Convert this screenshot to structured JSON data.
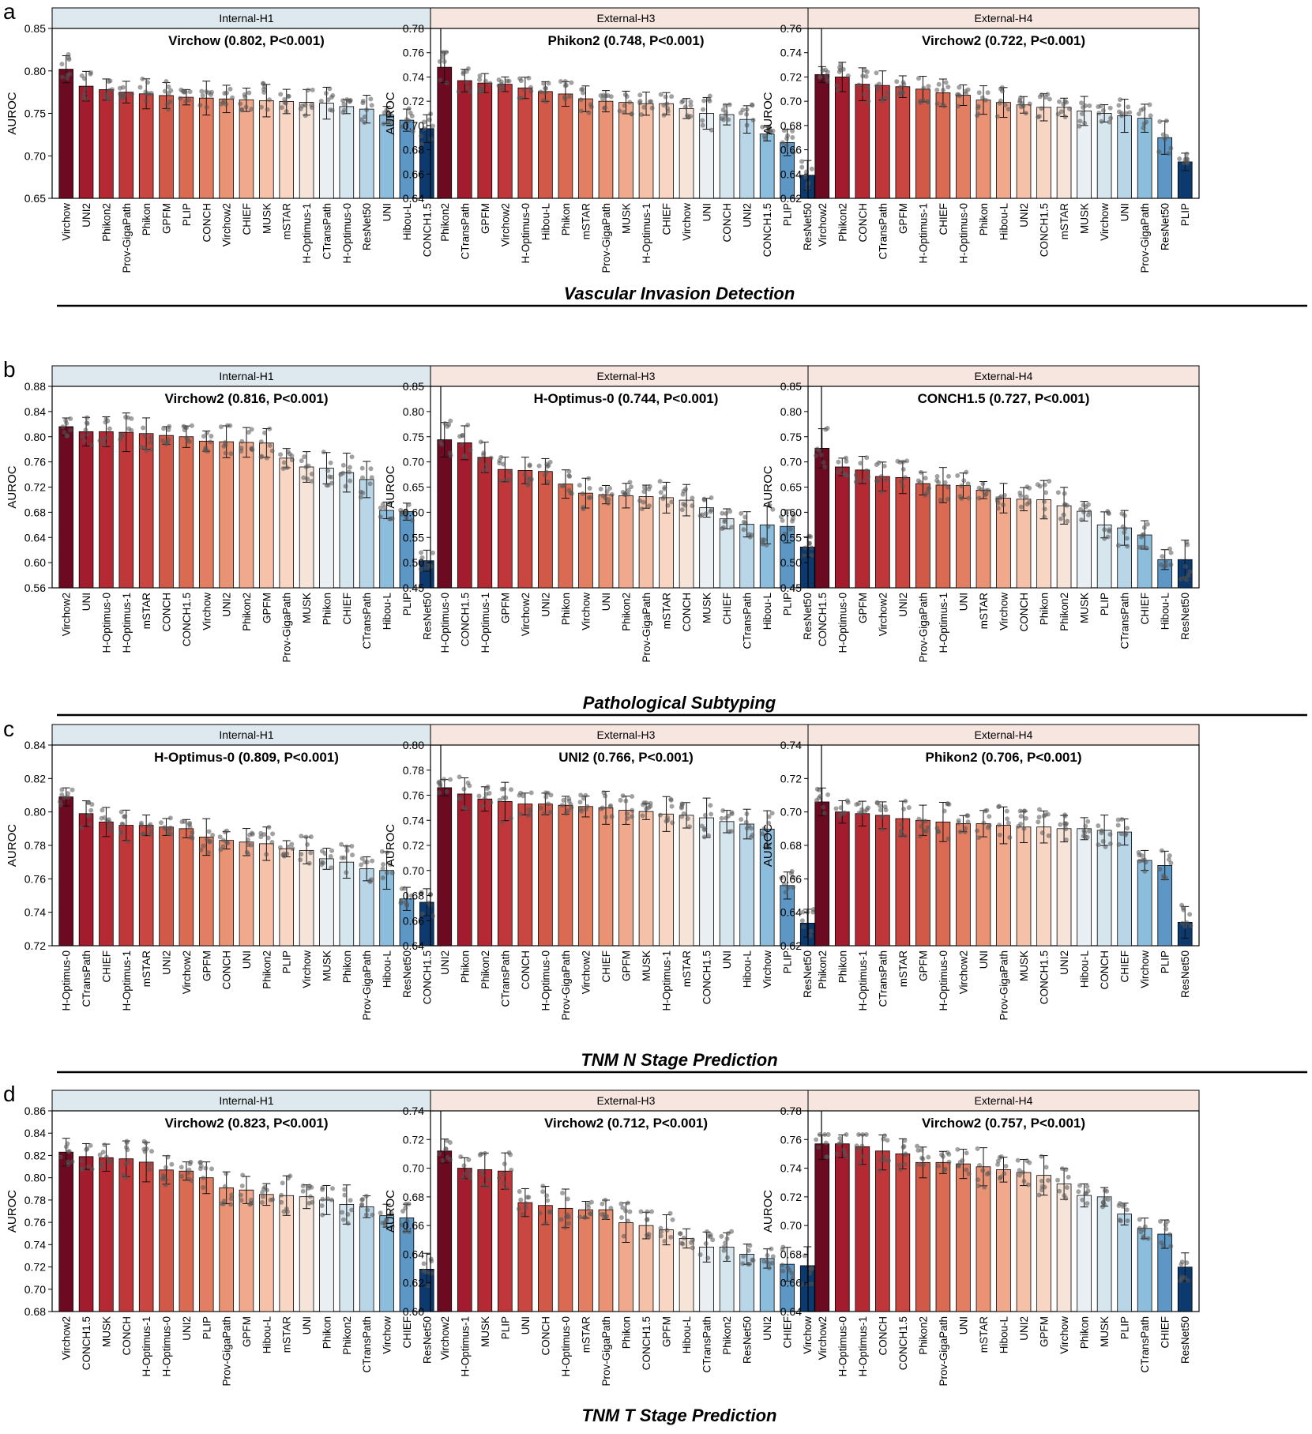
{
  "chart_data": [
    {
      "type": "bar",
      "row": "a",
      "panel": "Internal-H1",
      "title": "Virchow (0.802, P<0.001)",
      "ylabel": "AUROC",
      "ylim": [
        0.65,
        0.85
      ],
      "yticks": [
        0.65,
        0.7,
        0.75,
        0.8,
        0.85
      ],
      "categories": [
        "Virchow",
        "UNI2",
        "Phikon2",
        "Prov-GigaPath",
        "Phikon",
        "GPFM",
        "PLIP",
        "CONCH",
        "Virchow2",
        "CHIEF",
        "MUSK",
        "mSTAR",
        "H-Optimus-1",
        "CTransPath",
        "H-Optimus-0",
        "ResNet50",
        "UNI",
        "Hibou-L",
        "CONCH1.5"
      ],
      "values": [
        0.802,
        0.782,
        0.778,
        0.775,
        0.773,
        0.771,
        0.769,
        0.768,
        0.767,
        0.766,
        0.765,
        0.764,
        0.763,
        0.762,
        0.758,
        0.755,
        0.748,
        0.742,
        0.732
      ]
    },
    {
      "type": "bar",
      "row": "a",
      "panel": "External-H3",
      "title": "Phikon2 (0.748, P<0.001)",
      "ylabel": "AUROC",
      "ylim": [
        0.64,
        0.78
      ],
      "yticks": [
        0.64,
        0.66,
        0.68,
        0.7,
        0.72,
        0.74,
        0.76,
        0.78
      ],
      "categories": [
        "Phikon2",
        "CTransPath",
        "GPFM",
        "Virchow2",
        "H-Optimus-0",
        "Hibou-L",
        "Phikon",
        "mSTAR",
        "Prov-GigaPath",
        "MUSK",
        "H-Optimus-1",
        "CHIEF",
        "Virchow",
        "UNI",
        "CONCH",
        "UNI2",
        "CONCH1.5",
        "PLIP",
        "ResNet50"
      ],
      "values": [
        0.748,
        0.737,
        0.735,
        0.734,
        0.731,
        0.728,
        0.726,
        0.722,
        0.72,
        0.719,
        0.718,
        0.718,
        0.714,
        0.71,
        0.709,
        0.705,
        0.693,
        0.686,
        0.659
      ]
    },
    {
      "type": "bar",
      "row": "a",
      "panel": "External-H4",
      "title": "Virchow2 (0.722, P<0.001)",
      "ylabel": "AUROC",
      "ylim": [
        0.62,
        0.76
      ],
      "yticks": [
        0.62,
        0.64,
        0.66,
        0.68,
        0.7,
        0.72,
        0.74,
        0.76
      ],
      "categories": [
        "Virchow2",
        "Phikon2",
        "CONCH",
        "CTransPath",
        "GPFM",
        "H-Optimus-1",
        "CHIEF",
        "H-Optimus-0",
        "Phikon",
        "Hibou-L",
        "UNI2",
        "CONCH1.5",
        "mSTAR",
        "MUSK",
        "Virchow",
        "UNI",
        "Prov-GigaPath",
        "ResNet50",
        "PLIP"
      ],
      "values": [
        0.722,
        0.72,
        0.714,
        0.713,
        0.712,
        0.71,
        0.707,
        0.705,
        0.701,
        0.699,
        0.697,
        0.695,
        0.695,
        0.692,
        0.69,
        0.688,
        0.686,
        0.67,
        0.65
      ]
    },
    {
      "type": "bar",
      "row": "b",
      "panel": "Internal-H1",
      "title": "Virchow2 (0.816, P<0.001)",
      "ylabel": "AUROC",
      "ylim": [
        0.56,
        0.88
      ],
      "yticks": [
        0.56,
        0.6,
        0.64,
        0.68,
        0.72,
        0.76,
        0.8,
        0.84,
        0.88
      ],
      "categories": [
        "Virchow2",
        "UNI",
        "H-Optimus-0",
        "H-Optimus-1",
        "mSTAR",
        "CONCH",
        "CONCH1.5",
        "Virchow",
        "UNI2",
        "Phikon2",
        "GPFM",
        "Prov-GigaPath",
        "MUSK",
        "Phikon",
        "CHIEF",
        "CTransPath",
        "Hibou-L",
        "PLIP",
        "ResNet50"
      ],
      "values": [
        0.816,
        0.808,
        0.808,
        0.807,
        0.805,
        0.802,
        0.8,
        0.793,
        0.792,
        0.791,
        0.79,
        0.766,
        0.752,
        0.75,
        0.743,
        0.732,
        0.683,
        0.681,
        0.603
      ]
    },
    {
      "type": "bar",
      "row": "b",
      "panel": "External-H3",
      "title": "H-Optimus-0 (0.744, P<0.001)",
      "ylabel": "AUROC",
      "ylim": [
        0.45,
        0.85
      ],
      "yticks": [
        0.45,
        0.5,
        0.55,
        0.6,
        0.65,
        0.7,
        0.75,
        0.8,
        0.85
      ],
      "categories": [
        "H-Optimus-0",
        "CONCH1.5",
        "H-Optimus-1",
        "GPFM",
        "Virchow2",
        "UNI2",
        "Phikon",
        "Virchow",
        "UNI",
        "Phikon2",
        "Prov-GigaPath",
        "mSTAR",
        "CONCH",
        "MUSK",
        "CHIEF",
        "CTransPath",
        "Hibou-L",
        "PLIP",
        "ResNet50"
      ],
      "values": [
        0.744,
        0.738,
        0.709,
        0.685,
        0.683,
        0.681,
        0.656,
        0.638,
        0.635,
        0.633,
        0.631,
        0.629,
        0.624,
        0.609,
        0.587,
        0.576,
        0.575,
        0.572,
        0.531
      ]
    },
    {
      "type": "bar",
      "row": "b",
      "panel": "External-H4",
      "title": "CONCH1.5 (0.727, P<0.001)",
      "ylabel": "AUROC",
      "ylim": [
        0.45,
        0.85
      ],
      "yticks": [
        0.45,
        0.5,
        0.55,
        0.6,
        0.65,
        0.7,
        0.75,
        0.8,
        0.85
      ],
      "categories": [
        "CONCH1.5",
        "H-Optimus-0",
        "GPFM",
        "Virchow2",
        "UNI2",
        "Prov-GigaPath",
        "H-Optimus-1",
        "UNI",
        "mSTAR",
        "Virchow",
        "CONCH",
        "Phikon",
        "Phikon2",
        "MUSK",
        "PLIP",
        "CTransPath",
        "CHIEF",
        "Hibou-L",
        "ResNet50"
      ],
      "values": [
        0.727,
        0.69,
        0.684,
        0.671,
        0.669,
        0.657,
        0.654,
        0.653,
        0.644,
        0.628,
        0.626,
        0.625,
        0.613,
        0.602,
        0.575,
        0.569,
        0.555,
        0.506,
        0.506
      ]
    },
    {
      "type": "bar",
      "row": "c",
      "panel": "Internal-H1",
      "title": "H-Optimus-0 (0.809, P<0.001)",
      "ylabel": "AUROC",
      "ylim": [
        0.72,
        0.84
      ],
      "yticks": [
        0.72,
        0.74,
        0.76,
        0.78,
        0.8,
        0.82,
        0.84
      ],
      "categories": [
        "H-Optimus-0",
        "CTransPath",
        "CHIEF",
        "H-Optimus-1",
        "mSTAR",
        "UNI2",
        "Virchow2",
        "GPFM",
        "CONCH",
        "UNI",
        "Phikon2",
        "PLIP",
        "Virchow",
        "MUSK",
        "Phikon",
        "Prov-GigaPath",
        "Hibou-L",
        "ResNet50",
        "CONCH1.5"
      ],
      "values": [
        0.809,
        0.799,
        0.794,
        0.792,
        0.792,
        0.791,
        0.79,
        0.785,
        0.783,
        0.782,
        0.781,
        0.778,
        0.777,
        0.772,
        0.77,
        0.766,
        0.765,
        0.748,
        0.746
      ]
    },
    {
      "type": "bar",
      "row": "c",
      "panel": "External-H3",
      "title": "UNI2 (0.766, P<0.001)",
      "ylabel": "AUROC",
      "ylim": [
        0.64,
        0.8
      ],
      "yticks": [
        0.64,
        0.66,
        0.68,
        0.7,
        0.72,
        0.74,
        0.76,
        0.78,
        0.8
      ],
      "categories": [
        "UNI2",
        "Phikon",
        "Phikon2",
        "CTransPath",
        "CONCH",
        "H-Optimus-0",
        "Prov-GigaPath",
        "Virchow2",
        "CHIEF",
        "GPFM",
        "MUSK",
        "H-Optimus-1",
        "mSTAR",
        "CONCH1.5",
        "UNI",
        "Hibou-L",
        "Virchow",
        "PLIP",
        "ResNet50"
      ],
      "values": [
        0.766,
        0.761,
        0.757,
        0.755,
        0.753,
        0.753,
        0.752,
        0.751,
        0.75,
        0.748,
        0.747,
        0.745,
        0.744,
        0.742,
        0.739,
        0.737,
        0.733,
        0.688,
        0.658
      ]
    },
    {
      "type": "bar",
      "row": "c",
      "panel": "External-H4",
      "title": "Phikon2 (0.706, P<0.001)",
      "ylabel": "AUROC",
      "ylim": [
        0.62,
        0.74
      ],
      "yticks": [
        0.62,
        0.64,
        0.66,
        0.68,
        0.7,
        0.72,
        0.74
      ],
      "categories": [
        "Phikon2",
        "Phikon",
        "H-Optimus-1",
        "CTransPath",
        "mSTAR",
        "GPFM",
        "H-Optimus-0",
        "Virchow2",
        "UNI",
        "Prov-GigaPath",
        "MUSK",
        "CONCH1.5",
        "UNI2",
        "Hibou-L",
        "CONCH",
        "CHIEF",
        "Virchow",
        "PLIP",
        "ResNet50"
      ],
      "values": [
        0.706,
        0.7,
        0.699,
        0.698,
        0.696,
        0.695,
        0.694,
        0.693,
        0.693,
        0.692,
        0.691,
        0.691,
        0.69,
        0.69,
        0.689,
        0.688,
        0.671,
        0.668,
        0.634
      ]
    },
    {
      "type": "bar",
      "row": "d",
      "panel": "Internal-H1",
      "title": "Virchow2 (0.823, P<0.001)",
      "ylabel": "AUROC",
      "ylim": [
        0.68,
        0.86
      ],
      "yticks": [
        0.68,
        0.7,
        0.72,
        0.74,
        0.76,
        0.78,
        0.8,
        0.82,
        0.84,
        0.86
      ],
      "categories": [
        "Virchow2",
        "CONCH1.5",
        "MUSK",
        "CONCH",
        "H-Optimus-1",
        "H-Optimus-0",
        "UNI2",
        "PLIP",
        "Prov-GigaPath",
        "GPFM",
        "Hibou-L",
        "mSTAR",
        "UNI",
        "Phikon",
        "Phikon2",
        "CTransPath",
        "Virchow",
        "CHIEF",
        "ResNet50"
      ],
      "values": [
        0.823,
        0.819,
        0.818,
        0.817,
        0.814,
        0.807,
        0.806,
        0.8,
        0.791,
        0.789,
        0.785,
        0.784,
        0.783,
        0.78,
        0.776,
        0.774,
        0.766,
        0.764,
        0.718
      ]
    },
    {
      "type": "bar",
      "row": "d",
      "panel": "External-H3",
      "title": "Virchow2 (0.712, P<0.001)",
      "ylabel": "AUROC",
      "ylim": [
        0.6,
        0.74
      ],
      "yticks": [
        0.6,
        0.62,
        0.64,
        0.66,
        0.68,
        0.7,
        0.72,
        0.74
      ],
      "categories": [
        "Virchow2",
        "H-Optimus-1",
        "MUSK",
        "PLIP",
        "UNI",
        "CONCH",
        "H-Optimus-0",
        "mSTAR",
        "Prov-GigaPath",
        "Phikon",
        "CONCH1.5",
        "GPFM",
        "Hibou-L",
        "CTransPath",
        "Phikon2",
        "ResNet50",
        "UNI2",
        "CHIEF",
        "Virchow"
      ],
      "values": [
        0.712,
        0.7,
        0.699,
        0.698,
        0.676,
        0.674,
        0.672,
        0.671,
        0.671,
        0.662,
        0.66,
        0.657,
        0.651,
        0.645,
        0.645,
        0.64,
        0.637,
        0.633,
        0.632
      ]
    },
    {
      "type": "bar",
      "row": "d",
      "panel": "External-H4",
      "title": "Virchow2 (0.757, P<0.001)",
      "ylabel": "AUROC",
      "ylim": [
        0.64,
        0.78
      ],
      "yticks": [
        0.64,
        0.66,
        0.68,
        0.7,
        0.72,
        0.74,
        0.76,
        0.78
      ],
      "categories": [
        "Virchow2",
        "H-Optimus-0",
        "H-Optimus-1",
        "CONCH",
        "CONCH1.5",
        "Phikon2",
        "Prov-GigaPath",
        "UNI",
        "mSTAR",
        "Hibou-L",
        "UNI2",
        "GPFM",
        "Virchow",
        "Phikon",
        "MUSK",
        "PLIP",
        "CTransPath",
        "CHIEF",
        "ResNet50"
      ],
      "values": [
        0.757,
        0.757,
        0.755,
        0.752,
        0.75,
        0.744,
        0.744,
        0.743,
        0.741,
        0.739,
        0.737,
        0.735,
        0.729,
        0.721,
        0.72,
        0.708,
        0.698,
        0.694,
        0.671
      ]
    }
  ],
  "row_labels": [
    "a",
    "b",
    "c",
    "d"
  ],
  "section_titles": [
    "Vascular Invasion Detection",
    "Pathological Subtyping",
    "TNM N Stage Prediction",
    "TNM T Stage Prediction"
  ],
  "colors": {
    "internal_header": "#dde9ee",
    "external_header": "#f6e6df",
    "dark_top": "#6a0a20",
    "dark_bottom": "#0b3469"
  }
}
